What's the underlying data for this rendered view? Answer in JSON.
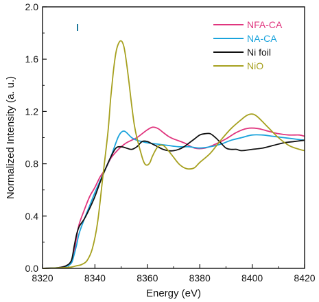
{
  "chart_data": {
    "type": "line",
    "title": "",
    "xlabel": "Energy (eV)",
    "ylabel": "Normalized Intensity (a. u.)",
    "xlim": [
      8320,
      8420
    ],
    "ylim": [
      0.0,
      2.0
    ],
    "xticks": [
      8320,
      8340,
      8360,
      8380,
      8400,
      8420
    ],
    "xtick_labels": [
      "8320",
      "8340",
      "8360",
      "8380",
      "8400",
      "8420"
    ],
    "yticks": [
      0.0,
      0.4,
      0.8,
      1.2,
      1.6,
      2.0
    ],
    "ytick_labels": [
      "0.0",
      "0.4",
      "0.8",
      "1.2",
      "1.6",
      "2.0"
    ],
    "grid": false,
    "legend_position": "top-right",
    "series": [
      {
        "name": "NFA-CA",
        "color": "#e0357e",
        "x": [
          8320,
          8326,
          8329,
          8331,
          8332,
          8333,
          8334,
          8336,
          8338,
          8340,
          8342,
          8344,
          8346,
          8348,
          8350,
          8352,
          8354,
          8356,
          8358,
          8360,
          8362,
          8364,
          8366,
          8368,
          8370,
          8374,
          8378,
          8382,
          8386,
          8390,
          8394,
          8398,
          8402,
          8406,
          8410,
          8414,
          8418,
          8420
        ],
        "y": [
          0.0,
          0.005,
          0.02,
          0.05,
          0.12,
          0.24,
          0.34,
          0.45,
          0.55,
          0.62,
          0.7,
          0.76,
          0.84,
          0.89,
          0.93,
          0.96,
          0.98,
          1.0,
          1.03,
          1.06,
          1.08,
          1.07,
          1.04,
          1.01,
          0.99,
          0.96,
          0.92,
          0.92,
          0.95,
          0.99,
          1.04,
          1.07,
          1.07,
          1.05,
          1.03,
          1.02,
          1.02,
          1.01
        ]
      },
      {
        "name": "NA-CA",
        "color": "#1aa3dc",
        "x": [
          8320,
          8326,
          8329,
          8331,
          8332,
          8333,
          8334,
          8336,
          8338,
          8340,
          8342,
          8344,
          8346,
          8348,
          8349,
          8350,
          8351,
          8352,
          8354,
          8356,
          8358,
          8360,
          8364,
          8368,
          8372,
          8376,
          8380,
          8384,
          8388,
          8392,
          8396,
          8400,
          8404,
          8408,
          8412,
          8416,
          8420
        ],
        "y": [
          0.0,
          0.005,
          0.015,
          0.04,
          0.1,
          0.18,
          0.27,
          0.38,
          0.48,
          0.58,
          0.67,
          0.76,
          0.85,
          0.96,
          1.01,
          1.04,
          1.05,
          1.04,
          1.0,
          0.98,
          0.97,
          0.96,
          0.95,
          0.94,
          0.93,
          0.93,
          0.92,
          0.93,
          0.95,
          0.98,
          1.0,
          1.02,
          1.02,
          1.01,
          1.0,
          0.99,
          0.98
        ]
      },
      {
        "name": "Ni foil",
        "color": "#111111",
        "x": [
          8320,
          8326,
          8329,
          8331,
          8332,
          8333,
          8334,
          8336,
          8338,
          8340,
          8342,
          8344,
          8346,
          8348,
          8350,
          8352,
          8354,
          8356,
          8358,
          8360,
          8362,
          8364,
          8366,
          8368,
          8370,
          8372,
          8374,
          8376,
          8378,
          8380,
          8382,
          8384,
          8386,
          8388,
          8390,
          8392,
          8394,
          8396,
          8400,
          8404,
          8408,
          8412,
          8416,
          8420
        ],
        "y": [
          0.0,
          0.005,
          0.02,
          0.06,
          0.16,
          0.26,
          0.32,
          0.38,
          0.46,
          0.55,
          0.66,
          0.76,
          0.85,
          0.92,
          0.93,
          0.92,
          0.91,
          0.93,
          0.97,
          0.97,
          0.95,
          0.93,
          0.91,
          0.9,
          0.9,
          0.91,
          0.93,
          0.96,
          0.99,
          1.02,
          1.03,
          1.03,
          1.0,
          0.96,
          0.92,
          0.91,
          0.91,
          0.9,
          0.91,
          0.92,
          0.94,
          0.96,
          0.97,
          0.98
        ]
      },
      {
        "name": "NiO",
        "color": "#a6a01e",
        "x": [
          8320,
          8328,
          8331,
          8333,
          8335,
          8337,
          8339,
          8341,
          8343,
          8345,
          8346,
          8347,
          8348,
          8349,
          8350,
          8351,
          8352,
          8353,
          8354,
          8355,
          8356,
          8358,
          8359,
          8360,
          8361,
          8362,
          8364,
          8366,
          8368,
          8370,
          8372,
          8374,
          8376,
          8378,
          8380,
          8384,
          8388,
          8392,
          8396,
          8398,
          8400,
          8402,
          8406,
          8410,
          8414,
          8418,
          8420
        ],
        "y": [
          0.0,
          0.005,
          0.01,
          0.02,
          0.03,
          0.06,
          0.15,
          0.35,
          0.7,
          1.05,
          1.3,
          1.5,
          1.65,
          1.72,
          1.74,
          1.7,
          1.58,
          1.42,
          1.25,
          1.1,
          1.0,
          0.85,
          0.8,
          0.79,
          0.81,
          0.86,
          0.93,
          0.94,
          0.9,
          0.85,
          0.8,
          0.77,
          0.76,
          0.77,
          0.81,
          0.88,
          0.98,
          1.07,
          1.14,
          1.17,
          1.18,
          1.16,
          1.08,
          1.0,
          0.94,
          0.91,
          0.9
        ]
      }
    ]
  }
}
